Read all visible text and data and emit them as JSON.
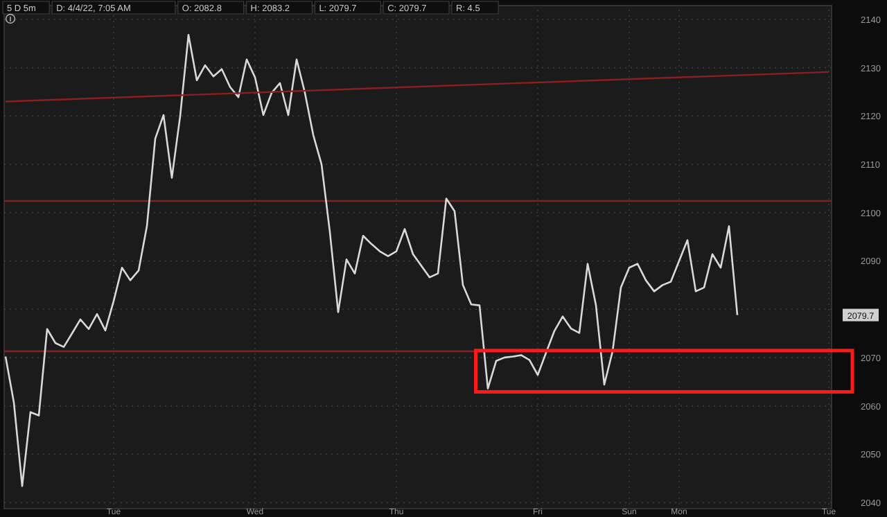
{
  "chart_data": {
    "type": "line",
    "annotations": [
      "5 D 5m",
      "D: 4/4/22, 7:05 AM",
      "O: 2082.8",
      "H: 2083.2",
      "L: 2079.7",
      "C: 2079.7",
      "R: 4.5",
      "2079.7"
    ],
    "categories": [
      null,
      null,
      null,
      null,
      null,
      null,
      null,
      null,
      null,
      null,
      null,
      null,
      null,
      "Tue",
      null,
      null,
      null,
      null,
      null,
      null,
      null,
      null,
      null,
      null,
      null,
      null,
      null,
      null,
      null,
      null,
      "Wed",
      null,
      null,
      null,
      null,
      null,
      null,
      null,
      null,
      null,
      null,
      null,
      null,
      null,
      null,
      null,
      null,
      "Thu",
      null,
      null,
      null,
      null,
      null,
      null,
      null,
      null,
      null,
      null,
      null,
      null,
      null,
      null,
      null,
      null,
      "Fri",
      null,
      null,
      null,
      null,
      null,
      null,
      null,
      null,
      null,
      null,
      "Sun",
      null,
      null,
      null,
      null,
      null,
      "Mon",
      null,
      null,
      null,
      null,
      null,
      null,
      null,
      null,
      null,
      null,
      null,
      null,
      null,
      null,
      null,
      null,
      null,
      "Tue"
    ],
    "series": [
      {
        "color": "#d9d9d9",
        "values": [
          2070.2,
          2060.7,
          2043.4,
          2058.7,
          2058,
          2075.9,
          2073.0,
          2072.2,
          2075,
          2077.9,
          2075.9,
          2079,
          2075.6,
          2081.7,
          2088.6,
          2086,
          2088,
          2097.2,
          2115.3,
          2120.2,
          2107.2,
          2120,
          2136.8,
          2127.4,
          2130.5,
          2128.2,
          2129.7,
          2126,
          2123.9,
          2131.7,
          2128,
          2120.2,
          2124.8,
          2126.8,
          2120.2,
          2131.7,
          2124.8,
          2116.1,
          2110,
          2096.0,
          2079.4,
          2090.3,
          2087.4,
          2095.2,
          2093.5,
          2092,
          2091,
          2092,
          2096.6,
          2091.4,
          2089,
          2086.6,
          2087.4,
          2102.9,
          2100.3,
          2085,
          2081,
          2080.8,
          2063.6,
          2069.3,
          2070,
          2070.2,
          2070.5,
          2069.5,
          2066.4,
          2071,
          2075.5,
          2078.5,
          2076,
          2075.1,
          2089.4,
          2080.8,
          2064.4,
          2071.3,
          2084.5,
          2088.6,
          2089.4,
          2086,
          2083.7,
          2085,
          2085.7,
          2090,
          2094.3,
          2083.7,
          2084.5,
          2091.4,
          2088.6,
          2097.2,
          2078.8,
          null,
          null,
          null,
          null,
          null,
          null,
          null,
          null,
          null,
          null,
          null
        ]
      },
      {
        "type": "line",
        "color": "#8e1f1f",
        "values": [
          2123.0,
          null,
          null,
          null,
          null,
          null,
          null,
          null,
          null,
          null,
          null,
          null,
          null,
          null,
          null,
          null,
          null,
          null,
          null,
          null,
          null,
          null,
          null,
          null,
          null,
          null,
          null,
          null,
          null,
          null,
          null,
          null,
          null,
          null,
          null,
          null,
          null,
          null,
          null,
          null,
          null,
          null,
          null,
          null,
          null,
          null,
          null,
          null,
          null,
          null,
          null,
          null,
          null,
          null,
          null,
          null,
          null,
          null,
          null,
          null,
          null,
          null,
          null,
          null,
          null,
          null,
          null,
          null,
          null,
          null,
          null,
          null,
          null,
          null,
          null,
          null,
          null,
          null,
          null,
          null,
          null,
          null,
          null,
          null,
          null,
          null,
          null,
          null,
          null,
          null,
          null,
          null,
          null,
          null,
          null,
          null,
          null,
          null,
          null,
          2129.1
        ]
      }
    ],
    "ref_lines": [
      {
        "axis": "y",
        "value": 2102.4,
        "color": "#7e2222"
      },
      {
        "axis": "y",
        "value": 2071.3,
        "color": "#7e2222"
      }
    ],
    "ylim": [
      2039,
      2142
    ],
    "yticks": [
      2040,
      2050,
      2060,
      2070,
      {
        "value": 2080,
        "label": null
      },
      2090,
      2100,
      2110,
      2120,
      2130,
      2140
    ],
    "grid": true,
    "marker": "none",
    "line_style": "solid"
  }
}
